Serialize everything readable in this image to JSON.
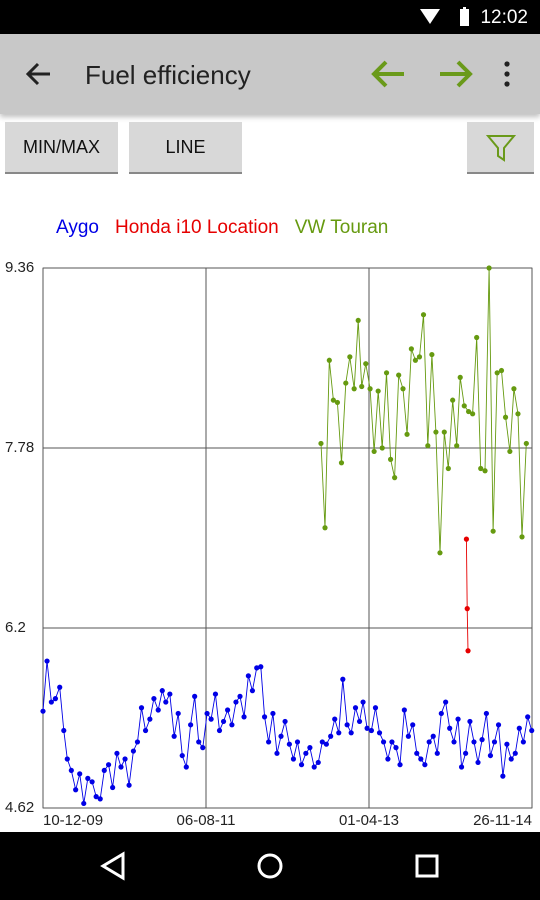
{
  "status_bar": {
    "time": "12:02"
  },
  "toolbar": {
    "title": "Fuel efficiency"
  },
  "buttons": [
    "MIN/MAX",
    "LINE"
  ],
  "chart_data": {
    "type": "line",
    "xlim": [
      "2009-12-10",
      "2014-11-26"
    ],
    "xticks": [
      {
        "value": "2009-12-10",
        "label": "10-12-09"
      },
      {
        "value": "2011-08-06",
        "label": "06-08-11"
      },
      {
        "value": "2013-04-01",
        "label": "01-04-13"
      },
      {
        "value": "2014-11-26",
        "label": "26-11-14"
      }
    ],
    "ylim": [
      4.62,
      9.36
    ],
    "yticks": [
      4.62,
      6.2,
      7.78,
      9.36
    ],
    "grid": true,
    "legend": "top",
    "series": [
      {
        "name": "Aygo",
        "color": "#0000e6",
        "x": [
          "2009-12-10",
          "2009-12-25",
          "2010-01-10",
          "2010-01-25",
          "2010-02-10",
          "2010-02-25",
          "2010-03-10",
          "2010-03-25",
          "2010-04-10",
          "2010-04-25",
          "2010-05-10",
          "2010-05-25",
          "2010-06-10",
          "2010-06-25",
          "2010-07-10",
          "2010-07-25",
          "2010-08-10",
          "2010-08-25",
          "2010-09-10",
          "2010-09-25",
          "2010-10-10",
          "2010-10-25",
          "2010-11-10",
          "2010-11-25",
          "2010-12-10",
          "2010-12-25",
          "2011-01-10",
          "2011-01-25",
          "2011-02-10",
          "2011-02-25",
          "2011-03-10",
          "2011-03-25",
          "2011-04-10",
          "2011-04-25",
          "2011-05-10",
          "2011-05-25",
          "2011-06-10",
          "2011-06-25",
          "2011-07-10",
          "2011-07-25",
          "2011-08-10",
          "2011-08-25",
          "2011-09-10",
          "2011-09-25",
          "2011-10-10",
          "2011-10-25",
          "2011-11-10",
          "2011-11-25",
          "2011-12-10",
          "2011-12-25",
          "2012-01-10",
          "2012-01-25",
          "2012-02-10",
          "2012-02-25",
          "2012-03-10",
          "2012-03-25",
          "2012-04-10",
          "2012-04-25",
          "2012-05-10",
          "2012-05-25",
          "2012-06-10",
          "2012-06-25",
          "2012-07-10",
          "2012-07-25",
          "2012-08-10",
          "2012-08-25",
          "2012-09-10",
          "2012-09-25",
          "2012-10-10",
          "2012-10-25",
          "2012-11-10",
          "2012-11-25",
          "2012-12-10",
          "2012-12-25",
          "2013-01-10",
          "2013-01-25",
          "2013-02-10",
          "2013-02-25",
          "2013-03-10",
          "2013-03-25",
          "2013-04-10",
          "2013-04-25",
          "2013-05-10",
          "2013-05-25",
          "2013-06-10",
          "2013-06-25",
          "2013-07-10",
          "2013-07-25",
          "2013-08-10",
          "2013-08-25",
          "2013-09-10",
          "2013-09-25",
          "2013-10-10",
          "2013-10-25",
          "2013-11-10",
          "2013-11-25",
          "2013-12-10",
          "2013-12-25",
          "2014-01-10",
          "2014-01-25",
          "2014-02-10",
          "2014-02-25",
          "2014-03-10",
          "2014-03-25",
          "2014-04-10",
          "2014-04-25",
          "2014-05-10",
          "2014-05-25",
          "2014-06-10",
          "2014-06-25",
          "2014-07-10",
          "2014-07-25",
          "2014-08-10",
          "2014-08-25",
          "2014-09-10",
          "2014-09-25",
          "2014-10-10",
          "2014-10-25",
          "2014-11-10",
          "2014-11-25"
        ],
        "values": [
          5.47,
          5.91,
          5.55,
          5.58,
          5.68,
          5.3,
          5.05,
          4.95,
          4.78,
          4.92,
          4.66,
          4.88,
          4.85,
          4.72,
          4.7,
          4.95,
          5.0,
          4.8,
          5.1,
          4.98,
          5.05,
          4.82,
          5.12,
          5.2,
          5.5,
          5.3,
          5.4,
          5.58,
          5.48,
          5.65,
          5.55,
          5.62,
          5.25,
          5.45,
          5.08,
          4.98,
          5.35,
          5.6,
          5.2,
          5.15,
          5.45,
          5.4,
          5.62,
          5.3,
          5.38,
          5.48,
          5.35,
          5.55,
          5.6,
          5.42,
          5.78,
          5.65,
          5.85,
          5.86,
          5.42,
          5.2,
          5.45,
          5.1,
          5.25,
          5.38,
          5.18,
          5.05,
          5.2,
          5.0,
          5.1,
          5.15,
          4.98,
          5.02,
          5.2,
          5.18,
          5.25,
          5.4,
          5.28,
          5.75,
          5.35,
          5.28,
          5.5,
          5.38,
          5.55,
          5.32,
          5.3,
          5.5,
          5.28,
          5.2,
          5.05,
          5.2,
          5.15,
          5.0,
          5.48,
          5.25,
          5.35,
          5.1,
          5.05,
          5.0,
          5.2,
          5.25,
          5.1,
          5.45,
          5.55,
          5.32,
          5.2,
          5.4,
          4.98,
          5.1,
          5.38,
          5.2,
          5.02,
          5.22,
          5.45,
          5.08,
          5.2,
          5.35,
          4.9,
          5.18,
          5.05,
          5.1,
          5.32,
          5.2,
          5.42,
          5.3
        ]
      },
      {
        "name": "Honda i10 Location",
        "color": "#e60000",
        "x": [
          "2014-03-28",
          "2014-03-31",
          "2014-04-03"
        ],
        "values": [
          6.98,
          6.37,
          6.0
        ]
      },
      {
        "name": "VW Touran",
        "color": "#669a10",
        "x": [
          "2012-10-05",
          "2012-10-20",
          "2012-11-05",
          "2012-11-20",
          "2012-12-05",
          "2012-12-20",
          "2013-01-05",
          "2013-01-20",
          "2013-02-05",
          "2013-02-20",
          "2013-03-05",
          "2013-03-20",
          "2013-04-05",
          "2013-04-20",
          "2013-05-05",
          "2013-05-20",
          "2013-06-05",
          "2013-06-20",
          "2013-07-05",
          "2013-07-20",
          "2013-08-05",
          "2013-08-20",
          "2013-09-05",
          "2013-09-20",
          "2013-10-05",
          "2013-10-20",
          "2013-11-05",
          "2013-11-20",
          "2013-12-05",
          "2013-12-20",
          "2014-01-05",
          "2014-01-20",
          "2014-02-05",
          "2014-02-20",
          "2014-03-05",
          "2014-03-20",
          "2014-04-05",
          "2014-04-20",
          "2014-05-05",
          "2014-05-20",
          "2014-06-05",
          "2014-06-20",
          "2014-07-05",
          "2014-07-20",
          "2014-08-05",
          "2014-08-20",
          "2014-09-05",
          "2014-09-20",
          "2014-10-05",
          "2014-10-20",
          "2014-11-05"
        ],
        "values": [
          7.82,
          7.08,
          8.55,
          8.2,
          8.18,
          7.65,
          8.35,
          8.58,
          8.3,
          8.9,
          8.32,
          8.52,
          8.3,
          7.75,
          8.28,
          7.78,
          8.44,
          7.68,
          7.52,
          8.42,
          8.3,
          7.9,
          8.65,
          8.55,
          8.58,
          8.95,
          7.8,
          8.6,
          7.92,
          6.86,
          7.92,
          7.6,
          8.2,
          7.8,
          8.4,
          8.15,
          8.1,
          8.08,
          8.75,
          7.6,
          7.58,
          9.36,
          7.05,
          8.44,
          8.46,
          8.05,
          7.75,
          8.3,
          8.08,
          7.0,
          7.82
        ]
      }
    ]
  }
}
